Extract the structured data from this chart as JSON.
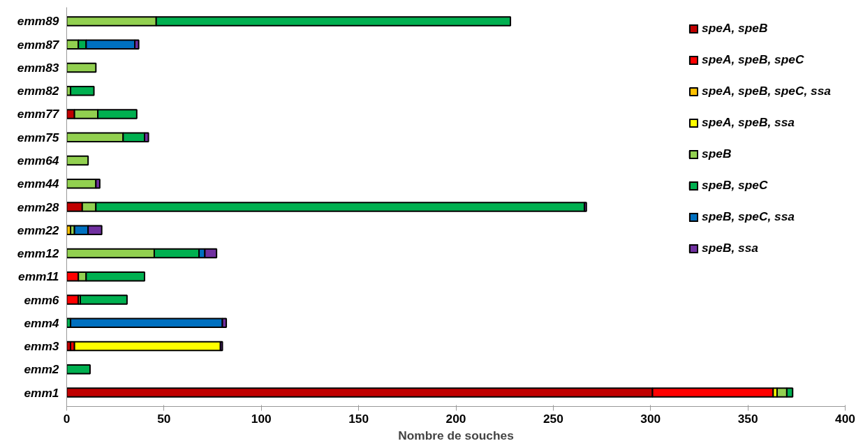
{
  "chart_data": {
    "type": "bar",
    "orientation": "horizontal",
    "stacked": true,
    "xlabel": "Nombre de souches",
    "categories": [
      "emm89",
      "emm87",
      "emm83",
      "emm82",
      "emm77",
      "emm75",
      "emm64",
      "emm44",
      "emm28",
      "emm22",
      "emm12",
      "emm11",
      "emm6",
      "emm4",
      "emm3",
      "emm2",
      "emm1"
    ],
    "series": [
      {
        "name": "speA, speB",
        "color": "#c00000",
        "values": [
          null,
          null,
          null,
          null,
          4,
          null,
          null,
          null,
          8,
          null,
          null,
          null,
          null,
          null,
          2,
          null,
          301
        ]
      },
      {
        "name": "speA, speB, speC",
        "color": "#ff0000",
        "values": [
          null,
          null,
          null,
          null,
          null,
          null,
          null,
          null,
          null,
          null,
          null,
          6,
          6,
          null,
          2,
          null,
          62
        ]
      },
      {
        "name": "speA, speB, speC, ssa",
        "color": "#ffc000",
        "values": [
          null,
          null,
          null,
          null,
          null,
          null,
          null,
          null,
          null,
          2,
          null,
          null,
          null,
          null,
          null,
          null,
          null
        ]
      },
      {
        "name": "speA, speB, ssa",
        "color": "#ffff00",
        "values": [
          null,
          null,
          null,
          null,
          null,
          null,
          null,
          null,
          null,
          null,
          null,
          null,
          null,
          null,
          75,
          null,
          2
        ]
      },
      {
        "name": "speB",
        "color": "#92d050",
        "values": [
          46,
          6,
          15,
          2,
          12,
          29,
          11,
          15,
          7,
          2,
          45,
          4,
          1,
          null,
          null,
          null,
          5
        ]
      },
      {
        "name": "speB, speC",
        "color": "#00b050",
        "values": [
          182,
          4,
          null,
          12,
          20,
          11,
          null,
          null,
          251,
          null,
          23,
          30,
          24,
          2,
          null,
          12,
          3
        ]
      },
      {
        "name": "speB, speC, ssa",
        "color": "#0070c0",
        "values": [
          null,
          25,
          null,
          null,
          null,
          null,
          null,
          null,
          null,
          7,
          3,
          null,
          null,
          78,
          null,
          null,
          null
        ]
      },
      {
        "name": "speB, ssa",
        "color": "#7030a0",
        "values": [
          null,
          2,
          null,
          null,
          null,
          2,
          null,
          2,
          1,
          7,
          6,
          null,
          null,
          2,
          1,
          null,
          null
        ]
      }
    ],
    "xlim": [
      0,
      400
    ],
    "xticks": [
      0,
      50,
      100,
      150,
      200,
      250,
      300,
      350,
      400
    ],
    "grid": false,
    "legend": "top right"
  }
}
